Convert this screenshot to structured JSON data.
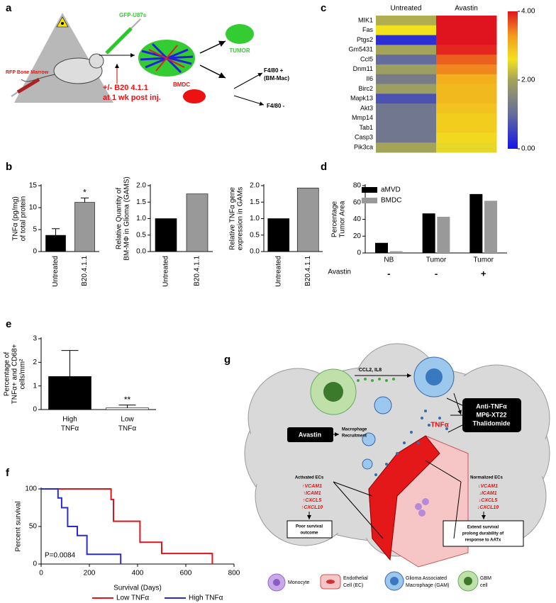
{
  "panel_labels": [
    "a",
    "b",
    "c",
    "d",
    "e",
    "f",
    "g"
  ],
  "diagram_a": {
    "texts": [
      "GFP-U87s",
      "TUMOR",
      "BMDC",
      "F4/80 +",
      "(BM-Mac)",
      "F4/80 -",
      "RFP Bone Marrow",
      "+/- B20 4.1.1",
      "at 1 wk post inj."
    ]
  },
  "chart_data": [
    {
      "type": "heatmap",
      "columns": [
        "Untreated",
        "Avastin"
      ],
      "rows": [
        "MIK1",
        "Fas",
        "Ptgs2",
        "Gm5431",
        "Ccl5",
        "Dnm11",
        "Il6",
        "Birc2",
        "Mapk13",
        "Akt3",
        "Mmp14",
        "Tab1",
        "Casp3",
        "Pik3ca"
      ],
      "values": [
        [
          2.1,
          4.0
        ],
        [
          2.6,
          4.0
        ],
        [
          0.3,
          4.0
        ],
        [
          2.0,
          3.9
        ],
        [
          1.0,
          3.6
        ],
        [
          1.9,
          3.4
        ],
        [
          1.3,
          3.1
        ],
        [
          1.9,
          3.0
        ],
        [
          0.7,
          3.0
        ],
        [
          1.2,
          2.9
        ],
        [
          1.2,
          2.8
        ],
        [
          1.2,
          2.8
        ],
        [
          1.2,
          2.7
        ],
        [
          2.0,
          2.5
        ]
      ],
      "colorbar_range": [
        0,
        4
      ],
      "colorbar_ticks": [
        {
          "value": 0,
          "label": "0.00"
        },
        {
          "value": 2,
          "label": "2.00"
        },
        {
          "value": 4,
          "label": "4.00"
        }
      ],
      "colorscale": [
        {
          "value": 0,
          "color": "#1515e6"
        },
        {
          "value": 1,
          "color": "#646c9c"
        },
        {
          "value": 2,
          "color": "#a3a35a"
        },
        {
          "value": 2.6,
          "color": "#f2e21e"
        },
        {
          "value": 3.3,
          "color": "#f29a1e"
        },
        {
          "value": 4,
          "color": "#e0141e"
        }
      ]
    },
    {
      "type": "bar",
      "ylabel": [
        "TNFα (pg/mg)",
        "of total protein"
      ],
      "categories": [
        "Untreated",
        "B20.4.1.1"
      ],
      "values": [
        3.7,
        11.2
      ],
      "errors": [
        1.5,
        1.0
      ],
      "annotation": "*",
      "colors": [
        "#000000",
        "#999999"
      ],
      "ylim": [
        0,
        15
      ],
      "yticks": [
        0,
        5,
        10,
        15
      ]
    },
    {
      "type": "bar",
      "ylabel": [
        "Relative Quantity of",
        "BM-MΦ in Glioma (GAMS)"
      ],
      "categories": [
        "Untreated",
        "B20.4.1.1"
      ],
      "values": [
        1.0,
        1.75
      ],
      "colors": [
        "#000000",
        "#999999"
      ],
      "ylim": [
        0,
        2
      ],
      "yticks": [
        {
          "value": 0,
          "label": "0.0"
        },
        0.5,
        {
          "value": 1,
          "label": "1.0"
        },
        1.5,
        {
          "value": 2,
          "label": "2.0"
        }
      ]
    },
    {
      "type": "bar",
      "ylabel": [
        "Relative TNFα gene",
        "expression in GAMs"
      ],
      "categories": [
        "Untreated",
        "B20.4.1.1"
      ],
      "values": [
        1.0,
        1.93
      ],
      "colors": [
        "#000000",
        "#999999"
      ],
      "ylim": [
        0,
        2
      ],
      "yticks": [
        {
          "value": 0,
          "label": "0.0"
        },
        0.5,
        {
          "value": 1,
          "label": "1.0"
        },
        1.5,
        {
          "value": 2,
          "label": "2.0"
        }
      ]
    },
    {
      "type": "bar",
      "ylabel": [
        "Percentage",
        "Tumor Area"
      ],
      "categories": [
        "NB",
        "Tumor",
        "Tumor"
      ],
      "series": [
        {
          "name": "aMVD",
          "color": "#000000",
          "values": [
            12,
            47,
            70
          ]
        },
        {
          "name": "BMDC",
          "color": "#999999",
          "values": [
            2,
            43,
            62
          ]
        }
      ],
      "row_label": "Avastin",
      "row_values": [
        "-",
        "-",
        "+"
      ],
      "ylim": [
        0,
        80
      ],
      "yticks": [
        0,
        20,
        40,
        60,
        80
      ]
    },
    {
      "type": "bar",
      "ylabel": [
        "Percentage of",
        "TNFα+ and CD68+",
        "cells/mm²"
      ],
      "categories": [
        [
          "High",
          "TNFα"
        ],
        [
          "Low",
          "TNFα"
        ]
      ],
      "values": [
        1.4,
        0.07
      ],
      "errors": [
        1.1,
        0.12
      ],
      "annotation": "**",
      "colors": [
        "#000000",
        "#ffffff"
      ],
      "ylim": [
        0,
        3
      ],
      "yticks": [
        0,
        1,
        2,
        3
      ]
    },
    {
      "type": "line",
      "step": true,
      "ylabel": [
        "Percent survival"
      ],
      "xlabel": "Survival (Days)",
      "annotation": "P=0.0084",
      "series": [
        {
          "name": "Low TNFα",
          "color": "#e0141e",
          "x": [
            0,
            290,
            300,
            410,
            500,
            710
          ],
          "values": [
            100,
            86,
            57,
            29,
            14,
            0
          ]
        },
        {
          "name": "High TNFα",
          "color": "#2a2ad0",
          "x": [
            0,
            70,
            85,
            110,
            150,
            190,
            330
          ],
          "values": [
            100,
            88,
            75,
            50,
            38,
            13,
            0
          ]
        }
      ],
      "xlim": [
        0,
        800
      ],
      "xticks": [
        0,
        200,
        400,
        600,
        800
      ],
      "ylim": [
        0,
        100
      ],
      "yticks": [
        0,
        50,
        100
      ]
    }
  ],
  "diagram_g": {
    "texts": [
      "CCL2, IL8",
      "TNFα",
      "Anti-TNFα",
      "MP6-XT22",
      "Thalidomide",
      "Avastin",
      "Macrophage",
      "Recruitment",
      "Activated ECs",
      "↑VCAM1",
      "↑ICAM1",
      "↑CXCL5",
      "↑CXCL10",
      "Poor survival",
      "outcome",
      "Normalized ECs",
      "↓VCAM1",
      "↓ICAM1",
      "↓CXCL5",
      "↓CXCL10",
      "Extend survival",
      "prolong durability of",
      "response to AATx",
      "Monocyte",
      "Endothelial",
      "Cell (EC)",
      "Glioma Associated",
      "Macrophage (GAM)",
      "GBM",
      "cell"
    ]
  }
}
